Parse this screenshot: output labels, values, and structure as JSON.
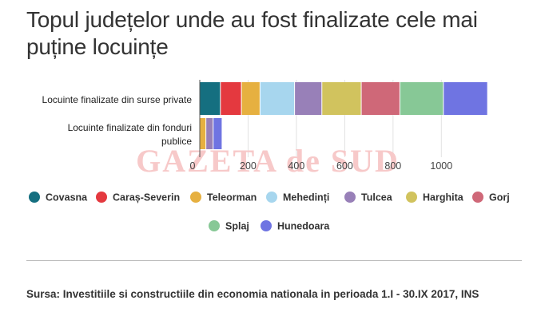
{
  "chart_data": {
    "type": "bar",
    "orientation": "horizontal",
    "stacked": true,
    "title": "Topul județelor unde au fost finalizate cele mai puține locuințe",
    "categories": [
      "Locuinte finalizate din surse private",
      "Locuinte finalizate din fonduri publice"
    ],
    "series": [
      {
        "name": "Covasna",
        "color": "#156f80",
        "values": [
          87,
          0
        ]
      },
      {
        "name": "Caraș-Severin",
        "color": "#e4393f",
        "values": [
          87,
          0
        ]
      },
      {
        "name": "Teleorman",
        "color": "#e6b040",
        "values": [
          77,
          27
        ]
      },
      {
        "name": "Mehedinți",
        "color": "#a7d6ee",
        "values": [
          143,
          0
        ]
      },
      {
        "name": "Tulcea",
        "color": "#9880b8",
        "values": [
          113,
          30
        ]
      },
      {
        "name": "Harghita",
        "color": "#d1c35e",
        "values": [
          163,
          0
        ]
      },
      {
        "name": "Gorj",
        "color": "#cf6878",
        "values": [
          160,
          0
        ]
      },
      {
        "name": "Splaj",
        "color": "#87c896",
        "values": [
          180,
          0
        ]
      },
      {
        "name": "Hunedoara",
        "color": "#6f74e2",
        "values": [
          183,
          37
        ]
      }
    ],
    "xlim": [
      0,
      1300
    ],
    "x_ticks": [
      0,
      200,
      400,
      600,
      800,
      1000
    ],
    "grid": true,
    "legend": "bottom",
    "watermark": "GAZETA de SUD"
  },
  "source": "Sursa: Investitiile si constructiile din economia nationala in perioada 1.I - 30.IX 2017, INS"
}
